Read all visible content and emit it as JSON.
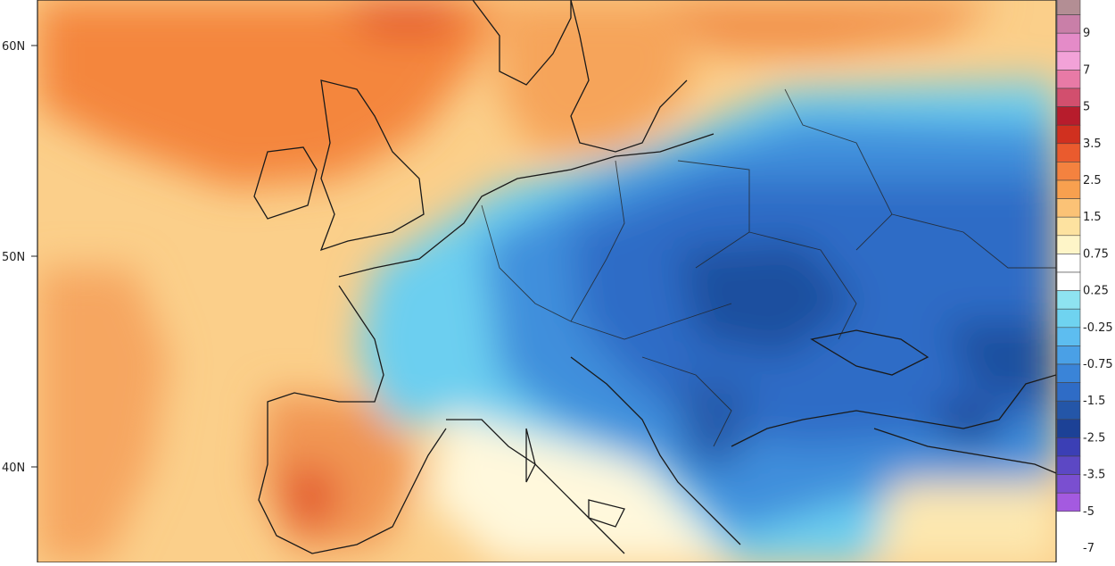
{
  "map": {
    "latitude_labels": [
      "60N",
      "50N",
      "40N"
    ]
  },
  "colorbar": {
    "labels": [
      "9",
      "7",
      "5",
      "3.5",
      "2.5",
      "1.5",
      "0.75",
      "0.25",
      "-0.25",
      "-0.75",
      "-1.5",
      "-2.5",
      "-3.5",
      "-5",
      "-7"
    ],
    "bands": [
      "#b38e94",
      "#c97fa8",
      "#e48bc8",
      "#f2a2d8",
      "#e87aa6",
      "#d24f6e",
      "#b71c2c",
      "#d0301f",
      "#ea5b2e",
      "#f4823f",
      "#f8a04f",
      "#fbc276",
      "#fde2a0",
      "#fef5c8",
      "#ffffff",
      "#ffffff",
      "#8ee3f0",
      "#6fd3f0",
      "#5dbdf0",
      "#4aa0e6",
      "#3a84d8",
      "#2f6cc6",
      "#2456a8",
      "#1c4196",
      "#3b3fb5",
      "#5c48c4",
      "#7a4fd0",
      "#a45ae0"
    ]
  }
}
